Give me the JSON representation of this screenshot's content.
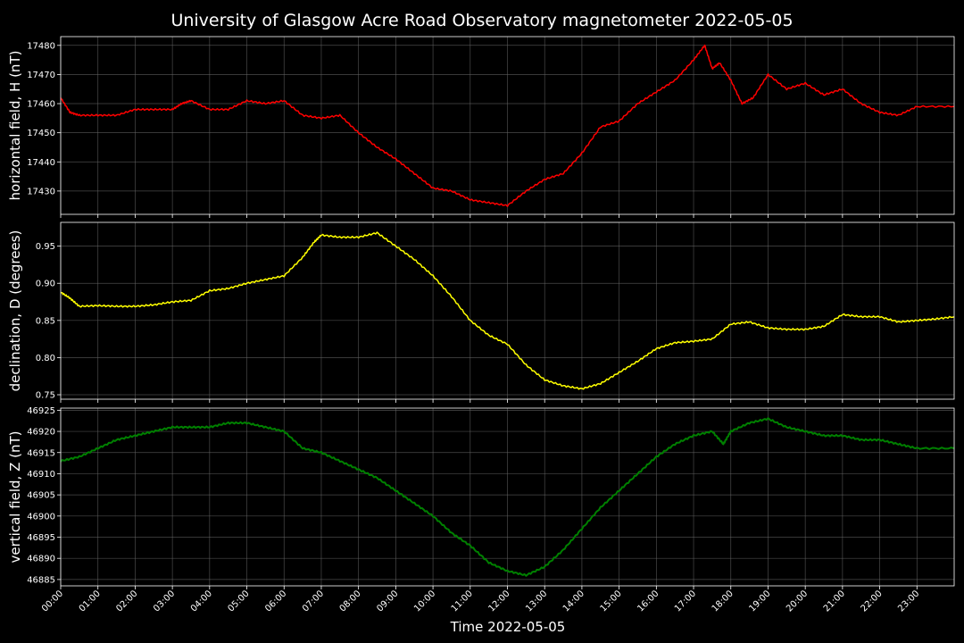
{
  "title": "University of Glasgow Acre Road Observatory magnetometer 2022-05-05",
  "xlabel": "Time 2022-05-05",
  "x_ticks": [
    "00:00",
    "01:00",
    "02:00",
    "03:00",
    "04:00",
    "05:00",
    "06:00",
    "07:00",
    "08:00",
    "09:00",
    "10:00",
    "11:00",
    "12:00",
    "13:00",
    "14:00",
    "15:00",
    "16:00",
    "17:00",
    "18:00",
    "19:00",
    "20:00",
    "21:00",
    "22:00",
    "23:00"
  ],
  "chart_data": [
    {
      "type": "line",
      "ylabel": "horizontal field, H (nT)",
      "color": "#ff0000",
      "x_unit": "hours",
      "xlim": [
        0,
        24
      ],
      "ylim": [
        17422,
        17483
      ],
      "yticks": [
        17430,
        17440,
        17450,
        17460,
        17470,
        17480
      ],
      "grid": true,
      "series": [
        {
          "x": [
            0,
            0.25,
            0.5,
            1,
            1.5,
            2,
            2.5,
            3,
            3.25,
            3.5,
            4,
            4.5,
            5,
            5.5,
            6,
            6.5,
            7,
            7.5,
            8,
            8.5,
            9,
            9.5,
            10,
            10.5,
            11,
            11.5,
            12,
            12.5,
            13,
            13.5,
            14,
            14.5,
            15,
            15.5,
            16,
            16.5,
            17,
            17.3,
            17.5,
            17.7,
            18,
            18.3,
            18.6,
            19,
            19.5,
            20,
            20.5,
            21,
            21.5,
            22,
            22.5,
            23,
            24
          ],
          "y": [
            17462,
            17457,
            17456,
            17456,
            17456,
            17458,
            17458,
            17458,
            17460,
            17461,
            17458,
            17458,
            17461,
            17460,
            17461,
            17456,
            17455,
            17456,
            17450,
            17445,
            17441,
            17436,
            17431,
            17430,
            17427,
            17426,
            17425,
            17430,
            17434,
            17436,
            17443,
            17452,
            17454,
            17460,
            17464,
            17468,
            17475,
            17480,
            17472,
            17474,
            17468,
            17460,
            17462,
            17470,
            17465,
            17467,
            17463,
            17465,
            17460,
            17457,
            17456,
            17459,
            17459
          ]
        }
      ]
    },
    {
      "type": "line",
      "ylabel": "declination, D (degrees)",
      "color": "#ffff00",
      "x_unit": "hours",
      "xlim": [
        0,
        24
      ],
      "ylim": [
        0.744,
        0.982
      ],
      "yticks": [
        0.75,
        0.8,
        0.85,
        0.9,
        0.95
      ],
      "grid": true,
      "series": [
        {
          "x": [
            0,
            0.25,
            0.5,
            1,
            1.5,
            2,
            2.5,
            3,
            3.5,
            4,
            4.5,
            5,
            5.5,
            6,
            6.5,
            6.8,
            7,
            7.5,
            8,
            8.5,
            9,
            9.5,
            10,
            10.5,
            11,
            11.5,
            12,
            12.5,
            13,
            13.5,
            14,
            14.5,
            15,
            15.5,
            16,
            16.5,
            17,
            17.5,
            18,
            18.5,
            19,
            19.5,
            20,
            20.5,
            21,
            21.5,
            22,
            22.5,
            23,
            23.5,
            24
          ],
          "y": [
            0.888,
            0.88,
            0.869,
            0.87,
            0.869,
            0.869,
            0.871,
            0.875,
            0.877,
            0.89,
            0.893,
            0.9,
            0.905,
            0.91,
            0.935,
            0.955,
            0.965,
            0.962,
            0.962,
            0.968,
            0.95,
            0.932,
            0.91,
            0.882,
            0.85,
            0.83,
            0.818,
            0.79,
            0.77,
            0.762,
            0.758,
            0.765,
            0.78,
            0.795,
            0.812,
            0.82,
            0.822,
            0.825,
            0.845,
            0.848,
            0.84,
            0.838,
            0.838,
            0.842,
            0.858,
            0.855,
            0.855,
            0.848,
            0.85,
            0.852,
            0.855
          ]
        }
      ]
    },
    {
      "type": "line",
      "ylabel": "vertical field, Z (nT)",
      "color": "#008000",
      "x_unit": "hours",
      "xlim": [
        0,
        24
      ],
      "ylim": [
        46883.5,
        46925.5
      ],
      "yticks": [
        46885,
        46890,
        46895,
        46900,
        46905,
        46910,
        46915,
        46920,
        46925
      ],
      "grid": true,
      "series": [
        {
          "x": [
            0,
            0.5,
            1,
            1.5,
            2,
            2.5,
            3,
            3.5,
            4,
            4.5,
            5,
            5.5,
            6,
            6.5,
            7,
            7.5,
            8,
            8.5,
            9,
            9.5,
            10,
            10.5,
            11,
            11.5,
            12,
            12.5,
            13,
            13.5,
            14,
            14.5,
            15,
            15.5,
            16,
            16.5,
            17,
            17.5,
            17.8,
            18,
            18.5,
            19,
            19.5,
            20,
            20.5,
            21,
            21.5,
            22,
            22.5,
            23,
            24
          ],
          "y": [
            46913,
            46914,
            46916,
            46918,
            46919,
            46920,
            46921,
            46921,
            46921,
            46922,
            46922,
            46921,
            46920,
            46916,
            46915,
            46913,
            46911,
            46909,
            46906,
            46903,
            46900,
            46896,
            46893,
            46889,
            46887,
            46886,
            46888,
            46892,
            46897,
            46902,
            46906,
            46910,
            46914,
            46917,
            46919,
            46920,
            46917,
            46920,
            46922,
            46923,
            46921,
            46920,
            46919,
            46919,
            46918,
            46918,
            46917,
            46916,
            46916
          ]
        }
      ]
    }
  ]
}
